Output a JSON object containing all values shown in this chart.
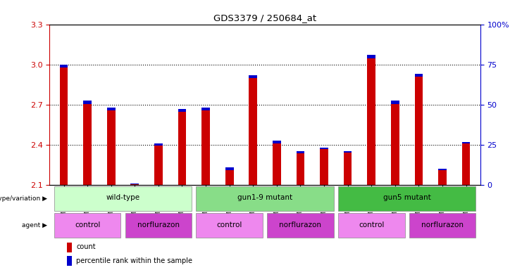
{
  "title": "GDS3379 / 250684_at",
  "samples": [
    "GSM323075",
    "GSM323076",
    "GSM323077",
    "GSM323078",
    "GSM323079",
    "GSM323080",
    "GSM323081",
    "GSM323082",
    "GSM323083",
    "GSM323084",
    "GSM323085",
    "GSM323086",
    "GSM323087",
    "GSM323088",
    "GSM323089",
    "GSM323090",
    "GSM323091",
    "GSM323092"
  ],
  "count_values": [
    3.0,
    2.73,
    2.68,
    2.11,
    2.41,
    2.67,
    2.68,
    2.23,
    2.92,
    2.43,
    2.35,
    2.38,
    2.35,
    3.07,
    2.73,
    2.93,
    2.22,
    2.42
  ],
  "percentile_values": [
    10,
    12,
    10,
    2,
    8,
    11,
    11,
    9,
    11,
    9,
    6,
    5,
    5,
    12,
    12,
    10,
    4,
    4
  ],
  "ymin": 2.1,
  "ymax": 3.3,
  "yticks": [
    2.1,
    2.4,
    2.7,
    3.0,
    3.3
  ],
  "right_yticks": [
    0,
    25,
    50,
    75,
    100
  ],
  "right_ytick_labels": [
    "0",
    "25",
    "50",
    "75",
    "100%"
  ],
  "grid_values": [
    2.4,
    2.7,
    3.0
  ],
  "bar_color": "#cc0000",
  "pct_color": "#0000cc",
  "bar_width": 0.35,
  "genotype_groups": [
    {
      "label": "wild-type",
      "start": 0,
      "end": 5,
      "color": "#ccffcc"
    },
    {
      "label": "gun1-9 mutant",
      "start": 6,
      "end": 11,
      "color": "#88dd88"
    },
    {
      "label": "gun5 mutant",
      "start": 12,
      "end": 17,
      "color": "#44bb44"
    }
  ],
  "agent_groups": [
    {
      "label": "control",
      "start": 0,
      "end": 2,
      "color": "#ee88ee"
    },
    {
      "label": "norflurazon",
      "start": 3,
      "end": 5,
      "color": "#cc44cc"
    },
    {
      "label": "control",
      "start": 6,
      "end": 8,
      "color": "#ee88ee"
    },
    {
      "label": "norflurazon",
      "start": 9,
      "end": 11,
      "color": "#cc44cc"
    },
    {
      "label": "control",
      "start": 12,
      "end": 14,
      "color": "#ee88ee"
    },
    {
      "label": "norflurazon",
      "start": 15,
      "end": 17,
      "color": "#cc44cc"
    }
  ],
  "legend_count_color": "#cc0000",
  "legend_pct_color": "#0000cc",
  "left_tick_color": "#cc0000",
  "right_tick_color": "#0000cc",
  "fig_width": 7.41,
  "fig_height": 3.84,
  "fig_dpi": 100
}
